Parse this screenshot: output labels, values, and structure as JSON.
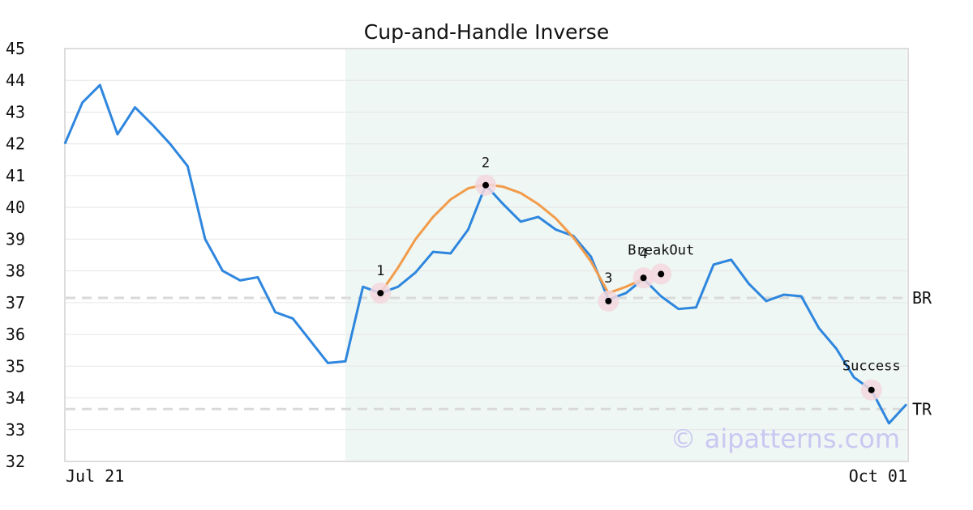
{
  "chart_data": {
    "type": "line",
    "title": "Cup-and-Handle Inverse",
    "xlabel": "",
    "ylabel": "",
    "ylim": [
      32,
      45
    ],
    "yticks": [
      32,
      33,
      34,
      35,
      36,
      37,
      38,
      39,
      40,
      41,
      42,
      43,
      44,
      45
    ],
    "x_range": [
      0,
      48
    ],
    "x_tick_labels": [
      {
        "x": 2,
        "label": "Jul 21"
      },
      {
        "x": 48,
        "label": "Oct 01"
      }
    ],
    "grid": "horizontal",
    "series": [
      {
        "color": "#2e86de",
        "x": [
          0,
          1,
          2,
          3,
          4,
          5,
          6,
          7,
          8,
          9,
          10,
          11,
          12,
          13,
          14,
          15,
          16,
          17,
          18,
          19,
          20,
          21,
          22,
          23,
          24,
          25,
          26,
          27,
          28,
          29,
          30,
          31,
          32,
          33,
          34,
          35,
          36,
          37,
          38,
          39,
          40,
          41,
          42,
          43,
          44,
          45,
          46,
          47,
          48
        ],
        "values": [
          42.0,
          43.3,
          43.85,
          42.3,
          43.15,
          42.6,
          42.0,
          41.3,
          39.0,
          38.0,
          37.7,
          37.8,
          36.7,
          36.5,
          35.8,
          35.1,
          35.15,
          37.5,
          37.3,
          37.5,
          37.95,
          38.6,
          38.55,
          39.3,
          40.7,
          40.1,
          39.55,
          39.7,
          39.3,
          39.1,
          38.45,
          37.1,
          37.3,
          37.75,
          37.2,
          36.8,
          36.85,
          38.2,
          38.35,
          37.6,
          37.05,
          37.25,
          37.2,
          36.2,
          35.55,
          34.65,
          34.25,
          33.2,
          33.8
        ]
      }
    ],
    "pattern_curves": [
      {
        "color": "#f29b4b",
        "x": [
          18,
          19,
          20,
          21,
          22,
          23,
          24,
          25,
          26,
          27,
          28,
          29,
          30,
          31,
          32,
          33
        ],
        "values": [
          37.3,
          38.1,
          39.0,
          39.7,
          40.25,
          40.6,
          40.72,
          40.65,
          40.45,
          40.1,
          39.65,
          39.05,
          38.3,
          37.3,
          37.5,
          37.75
        ]
      }
    ],
    "shaded_region": {
      "x_start": 16,
      "x_end": 48,
      "color": "#eef7f3"
    },
    "levels": [
      {
        "label": "BR",
        "value": 37.15
      },
      {
        "label": "TR",
        "value": 33.65
      }
    ],
    "points": [
      {
        "label": "1",
        "x": 18,
        "y": 37.3
      },
      {
        "label": "2",
        "x": 24,
        "y": 40.7
      },
      {
        "label": "3",
        "x": 31,
        "y": 37.05
      },
      {
        "label": "4",
        "x": 33,
        "y": 37.78
      },
      {
        "label": "BreakOut",
        "x": 34,
        "y": 37.9
      },
      {
        "label": "Success",
        "x": 46,
        "y": 34.25
      }
    ],
    "watermark": "© aipatterns.com"
  }
}
